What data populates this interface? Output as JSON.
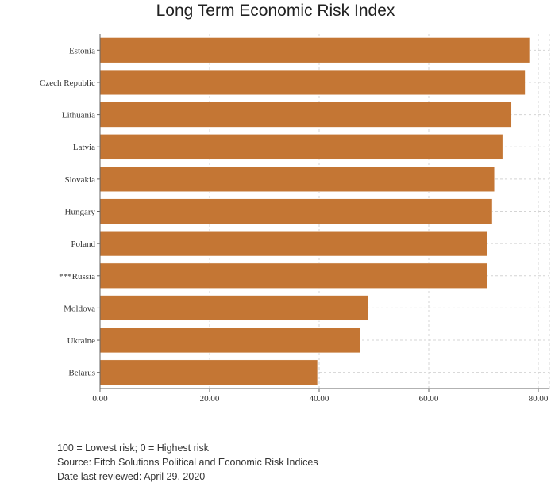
{
  "chart_data": {
    "type": "bar",
    "orientation": "horizontal",
    "title": "Long Term Economic Risk Index",
    "xlabel": "",
    "ylabel": "",
    "categories": [
      "Estonia",
      "Czech Republic",
      "Lithuania",
      "Latvia",
      "Slovakia",
      "Hungary",
      "Poland",
      "***Russia",
      "Moldova",
      "Ukraine",
      "Belarus"
    ],
    "values": [
      78.4,
      77.6,
      75.1,
      73.5,
      72.0,
      71.6,
      70.7,
      70.7,
      48.9,
      47.5,
      39.7
    ],
    "xlim": [
      0,
      80
    ],
    "xticks": [
      "0.00",
      "20.00",
      "40.00",
      "60.00",
      "80.00"
    ],
    "grid": true,
    "bar_color": "#C47634"
  },
  "notes": [
    "100 = Lowest risk; 0 = Highest risk",
    "Source: Fitch Solutions Political and Economic Risk Indices",
    "Date last reviewed: April 29, 2020"
  ]
}
